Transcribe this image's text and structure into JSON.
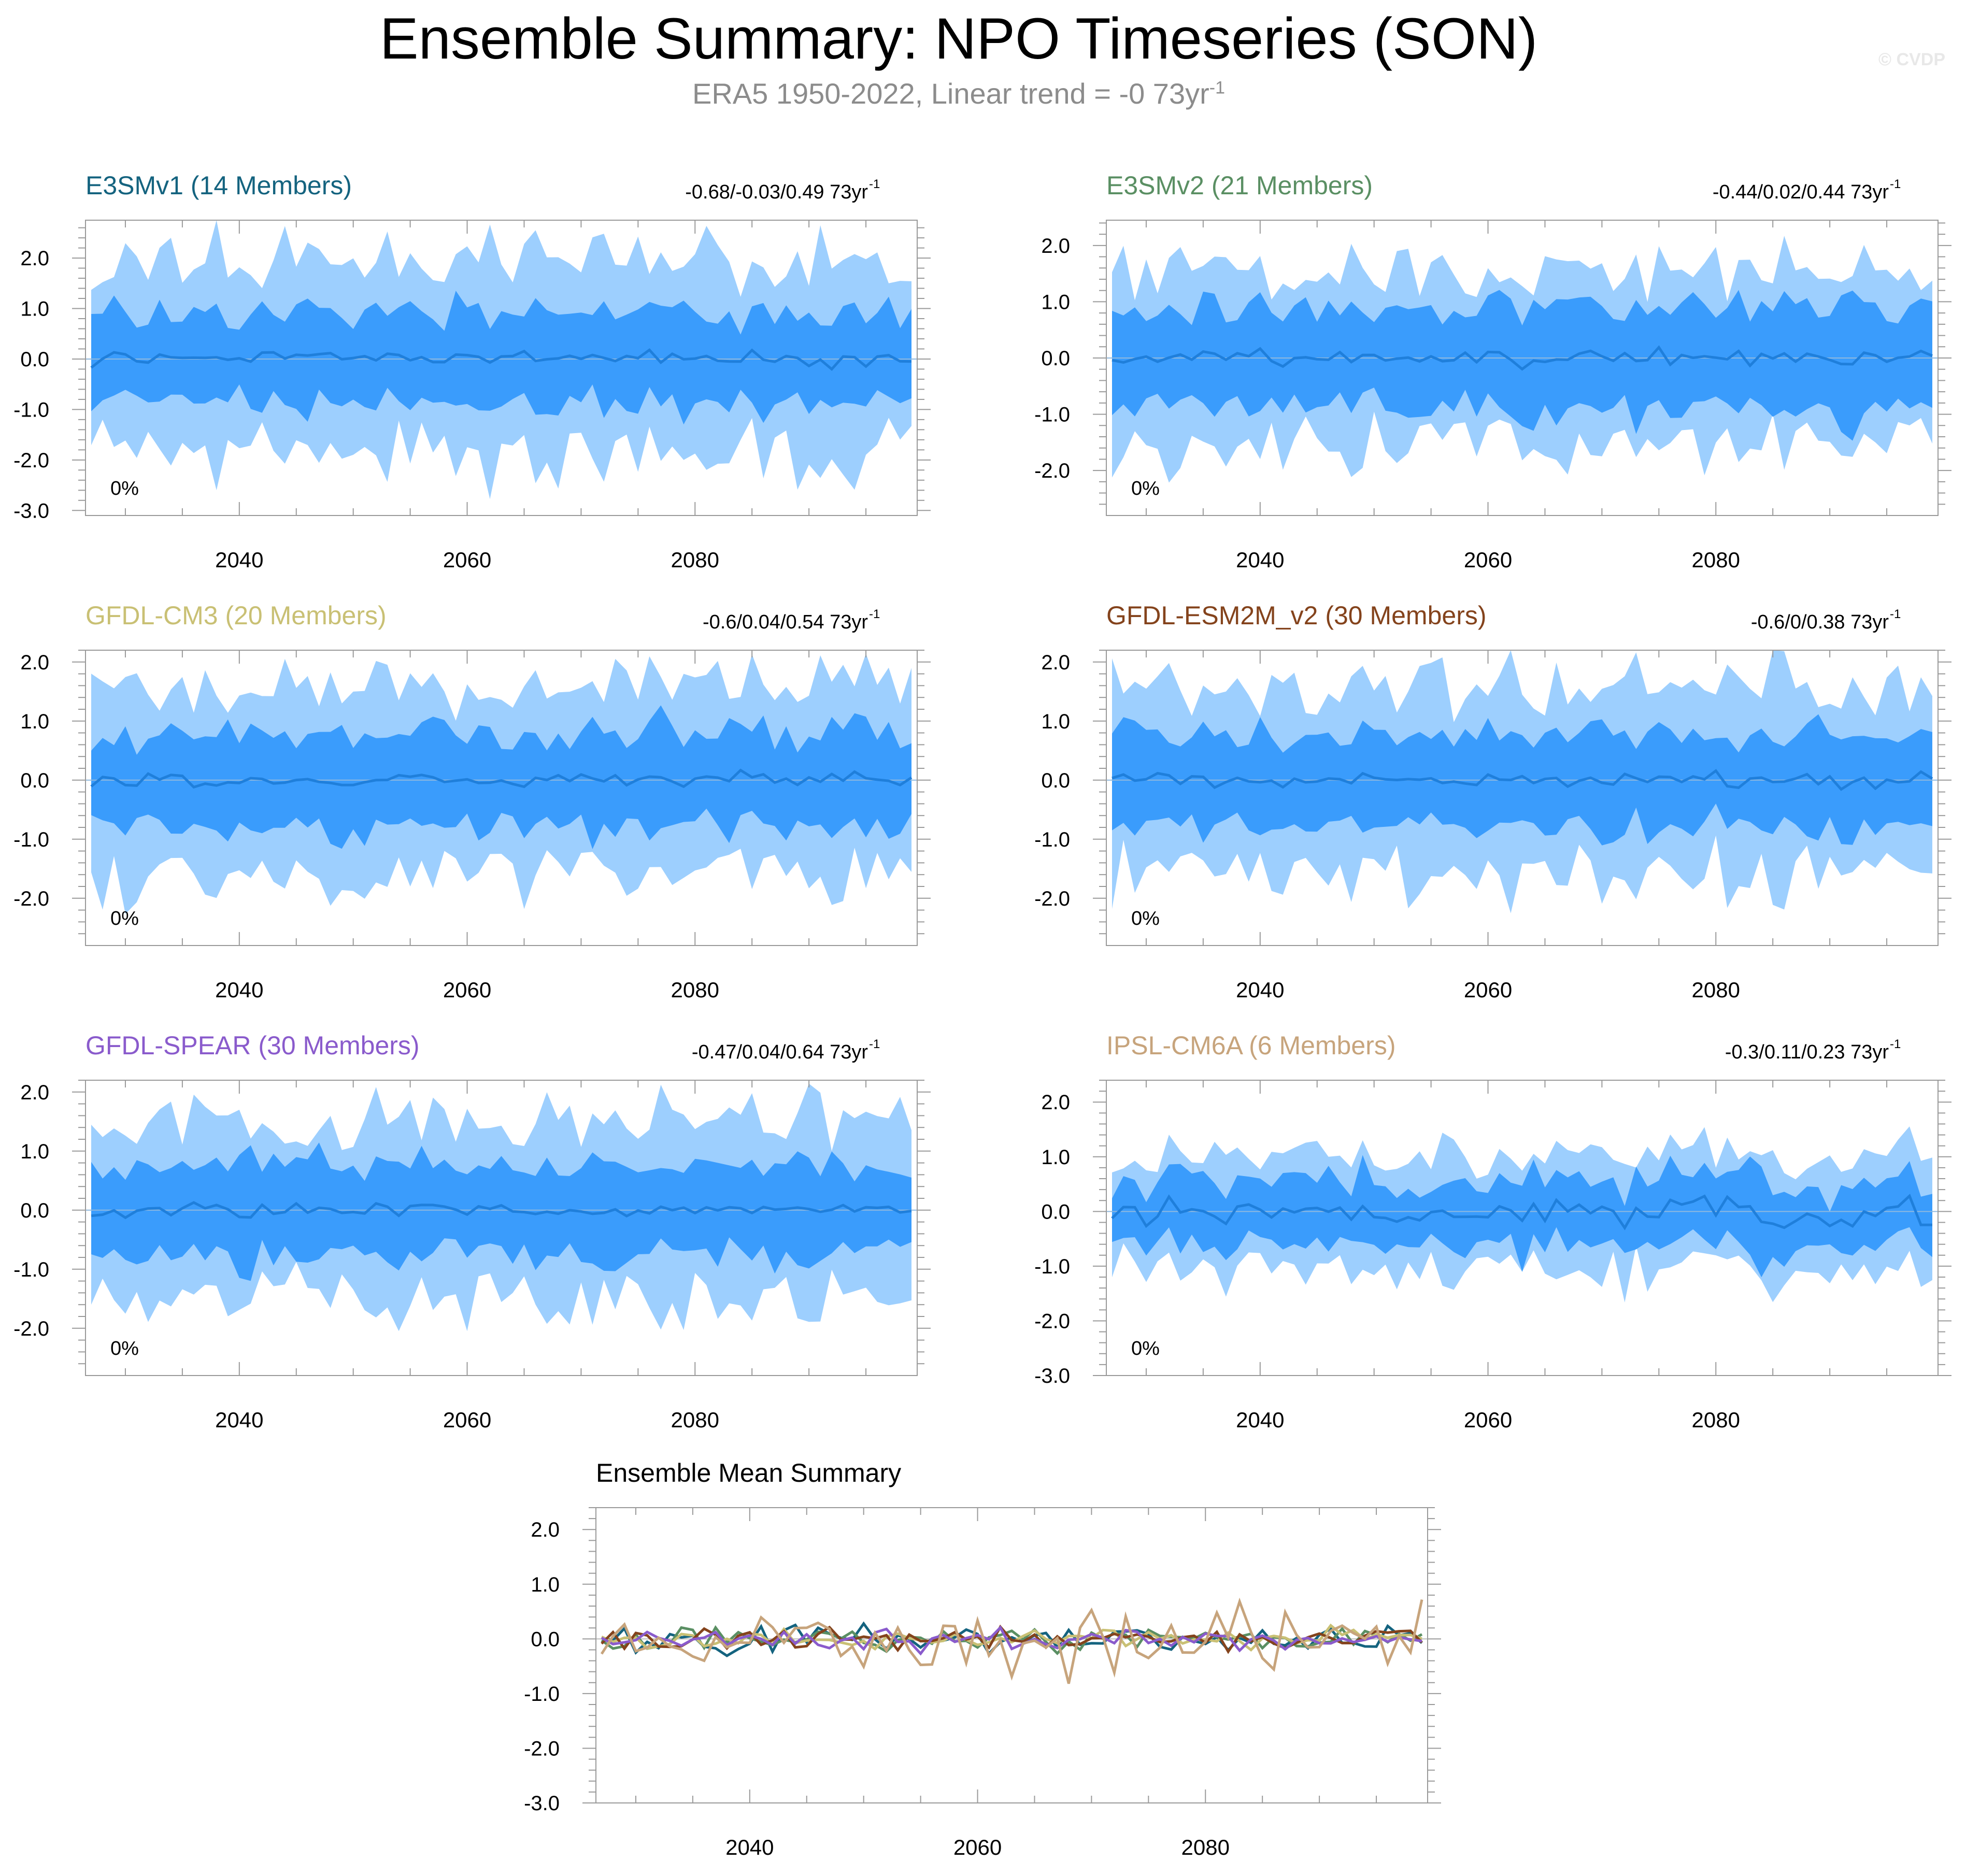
{
  "header": {
    "title": "Ensemble Summary: NPO Timeseries (SON)",
    "subtitle_base": "ERA5 1950-2022, Linear trend = -0 73yr",
    "subtitle_sup": "-1",
    "copyright": "© CVDP"
  },
  "trend_unit": {
    "base": "73yr",
    "sup": "-1"
  },
  "colors": {
    "band_outer": "#9dcffe",
    "band_inner": "#3a9cfc",
    "mean_line": "#1f7fdb",
    "axis": "#000000"
  },
  "chart_data": [
    {
      "type": "area",
      "title": "E3SMv1 (14 Members)",
      "title_color": "#14637f",
      "trend_text": "-0.68/-0.03/0.49",
      "percent_label": "0%",
      "x_start": 2027,
      "x_end": 2099,
      "xticks": [
        2040,
        2060,
        2080
      ],
      "ylim": [
        -3.1,
        2.75
      ],
      "yticks": [
        2.0,
        1.0,
        0.0,
        -1.0,
        -2.0,
        -3.0
      ],
      "ytick_labels": [
        "2.0",
        "1.0",
        "0.0",
        "-1.0",
        "-2.0",
        "-3.0"
      ],
      "inner_half": 0.85,
      "outer_half": 1.8,
      "variability": 0.7,
      "seed": 11
    },
    {
      "type": "area",
      "title": "E3SMv2 (21 Members)",
      "title_color": "#5a8f63",
      "trend_text": "-0.44/0.02/0.44",
      "percent_label": "0%",
      "x_start": 2027,
      "x_end": 2099,
      "xticks": [
        2040,
        2060,
        2080
      ],
      "ylim": [
        -2.8,
        2.45
      ],
      "yticks": [
        2.0,
        1.0,
        0.0,
        -1.0,
        -2.0
      ],
      "ytick_labels": [
        "2.0",
        "1.0",
        "0.0",
        "-1.0",
        "-2.0"
      ],
      "inner_half": 0.85,
      "outer_half": 1.5,
      "variability": 0.55,
      "seed": 23
    },
    {
      "type": "area",
      "title": "GFDL-CM3 (20 Members)",
      "title_color": "#c9c074",
      "trend_text": "-0.6/0.04/0.54",
      "percent_label": "0%",
      "x_start": 2027,
      "x_end": 2099,
      "xticks": [
        2040,
        2060,
        2080
      ],
      "ylim": [
        -2.8,
        2.2
      ],
      "yticks": [
        2.0,
        1.0,
        0.0,
        -1.0,
        -2.0
      ],
      "ytick_labels": [
        "2.0",
        "1.0",
        "0.0",
        "-1.0",
        "-2.0"
      ],
      "inner_half": 0.75,
      "outer_half": 1.5,
      "variability": 0.5,
      "seed": 37
    },
    {
      "type": "area",
      "title": "GFDL-ESM2M_v2 (30 Members)",
      "title_color": "#84431c",
      "trend_text": "-0.6/0/0.38",
      "percent_label": "0%",
      "x_start": 2027,
      "x_end": 2099,
      "xticks": [
        2040,
        2060,
        2080
      ],
      "ylim": [
        -2.8,
        2.2
      ],
      "yticks": [
        2.0,
        1.0,
        0.0,
        -1.0,
        -2.0
      ],
      "ytick_labels": [
        "2.0",
        "1.0",
        "0.0",
        "-1.0",
        "-2.0"
      ],
      "inner_half": 0.75,
      "outer_half": 1.5,
      "variability": 0.45,
      "seed": 41
    },
    {
      "type": "area",
      "title": "GFDL-SPEAR (30 Members)",
      "title_color": "#8a5bcc",
      "trend_text": "-0.47/0.04/0.64",
      "percent_label": "0%",
      "x_start": 2027,
      "x_end": 2099,
      "xticks": [
        2040,
        2060,
        2080
      ],
      "ylim": [
        -2.8,
        2.2
      ],
      "yticks": [
        2.0,
        1.0,
        0.0,
        -1.0,
        -2.0
      ],
      "ytick_labels": [
        "2.0",
        "1.0",
        "0.0",
        "-1.0",
        "-2.0"
      ],
      "inner_half": 0.75,
      "outer_half": 1.45,
      "variability": 0.45,
      "seed": 53
    },
    {
      "type": "area",
      "title": "IPSL-CM6A (6 Members)",
      "title_color": "#c7a47c",
      "trend_text": "-0.3/0.11/0.23",
      "percent_label": "0%",
      "x_start": 2027,
      "x_end": 2099,
      "xticks": [
        2040,
        2060,
        2080
      ],
      "ylim": [
        -3.0,
        2.4
      ],
      "yticks": [
        2.0,
        1.0,
        0.0,
        -1.0,
        -2.0,
        -3.0
      ],
      "ytick_labels": [
        "2.0",
        "1.0",
        "0.0",
        "-1.0",
        "-2.0",
        "-3.0"
      ],
      "inner_half": 0.55,
      "outer_half": 1.0,
      "variability": 1.0,
      "seed": 67
    },
    {
      "type": "line",
      "title": "Ensemble Mean Summary",
      "x_start": 2027,
      "x_end": 2099,
      "xticks": [
        2040,
        2060,
        2080
      ],
      "ylim": [
        -3.0,
        2.4
      ],
      "yticks": [
        2.0,
        1.0,
        0.0,
        -1.0,
        -2.0,
        -3.0
      ],
      "ytick_labels": [
        "2.0",
        "1.0",
        "0.0",
        "-1.0",
        "-2.0",
        "-3.0"
      ],
      "series": [
        {
          "name": "E3SMv1",
          "color": "#14637f",
          "amp": 0.2,
          "seed": 101
        },
        {
          "name": "E3SMv2",
          "color": "#5a8f63",
          "amp": 0.15,
          "seed": 113
        },
        {
          "name": "GFDL-CM3",
          "color": "#c9c074",
          "amp": 0.14,
          "seed": 127
        },
        {
          "name": "GFDL-ESM2M_v2",
          "color": "#84431c",
          "amp": 0.14,
          "seed": 131
        },
        {
          "name": "GFDL-SPEAR",
          "color": "#8a5bcc",
          "amp": 0.14,
          "seed": 149
        },
        {
          "name": "IPSL-CM6A",
          "color": "#c7a47c",
          "amp": 0.45,
          "seed": 163
        }
      ]
    }
  ]
}
